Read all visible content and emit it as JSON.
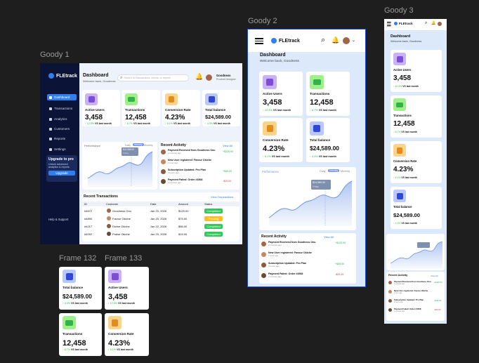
{
  "frames": {
    "goody1": "Goody 1",
    "goody2": "Goody 2",
    "goody3": "Goody 3",
    "f132": "Frame 132",
    "f133": "Frame 133"
  },
  "brand": "FLEtrack",
  "header": {
    "title": "Dashboard",
    "subtitle": "Welcome back, Goodness",
    "search_placeholder": "Search for transactions, clients, or reports",
    "user_name": "Goodness",
    "user_role": "Product Designer"
  },
  "nav": [
    "Dashboard",
    "Transactions",
    "Analytics",
    "Customers",
    "Reports",
    "Settings"
  ],
  "upgrade": {
    "title": "Upgrade to pro",
    "desc": "Unlock advanced analytics & reports.",
    "button": "Upgrade"
  },
  "help": "Help & Support",
  "stats": {
    "active": {
      "label": "Active Users",
      "value": "3,458",
      "pct": "12.5%",
      "vs": "VS last month"
    },
    "trans": {
      "label": "Transactions",
      "value": "12,458",
      "pct": "8.7%",
      "vs": "VS last month"
    },
    "conv": {
      "label": "Conversion Rate",
      "value": "4.23%",
      "pct": "6.1%",
      "vs": "VS last month"
    },
    "total": {
      "label": "Total balance",
      "value": "$24,589.00",
      "pct": "4.3%",
      "vs": "VS last month"
    }
  },
  "performance": {
    "title": "Performance",
    "tabs": [
      "Daily",
      "Weekly",
      "Monthly"
    ],
    "tooltip_val": "$24,589.00",
    "tooltip_sub": "Friday"
  },
  "activity": {
    "title": "Recent Activity",
    "view_all": "View All",
    "items": [
      {
        "title": "Payment Received from Goodness Onu",
        "time": "2 minutes ago",
        "amt": "+$120.00",
        "sign": "pos"
      },
      {
        "title": "New User registered: Favour Okiche",
        "time": "1 hour ago",
        "amt": "",
        "sign": ""
      },
      {
        "title": "Subscription Updated: Pro Plan",
        "time": "3 hours ago",
        "amt": "+$49.00",
        "sign": "pos"
      },
      {
        "title": "Payment Failed: Order #4568",
        "time": "2 minutes ago",
        "amt": "-$29.00",
        "sign": "neg"
      }
    ]
  },
  "transactions": {
    "title": "Recent Transactions",
    "view_all": "View Transactions",
    "headers": [
      "ID",
      "Customer",
      "Date",
      "Amount",
      "Status"
    ],
    "rows": [
      {
        "id": "#4672",
        "name": "Goodness Onu",
        "date": "Jan 20, 2026",
        "amt": "$129.00",
        "status": "Completed"
      },
      {
        "id": "#4890",
        "name": "Favour Okiche",
        "date": "Jan 20, 2026",
        "amt": "$75.00",
        "status": "Pending"
      },
      {
        "id": "#4217",
        "name": "Divine Okiche",
        "date": "Jan 22, 2026",
        "amt": "$56.00",
        "status": "Completed"
      },
      {
        "id": "#4092",
        "name": "Praise Okiche",
        "date": "Jan 20, 2026",
        "amt": "$19.00",
        "status": "Completed"
      }
    ]
  },
  "colors": {
    "accent": "#2f80ed",
    "sidebar": "#0b1437",
    "success": "#2ab24a",
    "danger": "#e53935"
  }
}
